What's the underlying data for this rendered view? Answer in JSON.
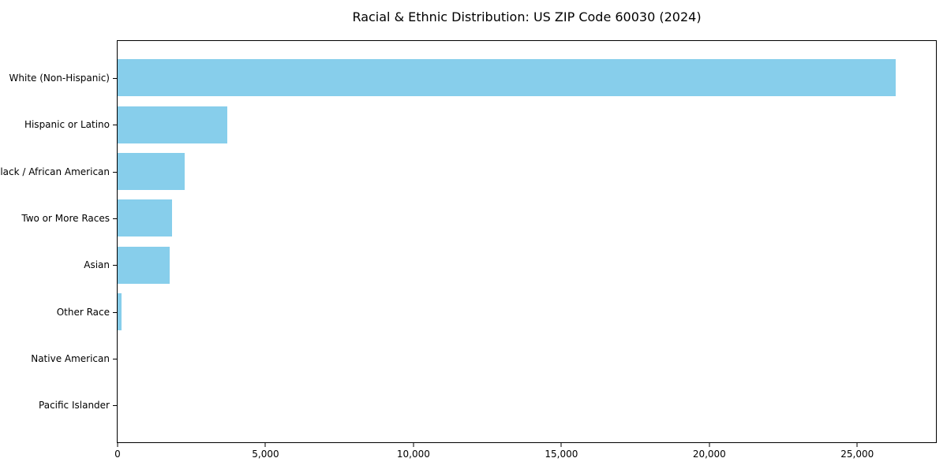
{
  "chart_data": {
    "type": "bar",
    "orientation": "horizontal",
    "title": "Racial & Ethnic Distribution: US ZIP Code 60030 (2024)",
    "categories": [
      "White (Non-Hispanic)",
      "Hispanic or Latino",
      "Black / African American",
      "Two or More Races",
      "Asian",
      "Other Race",
      "Native American",
      "Pacific Islander"
    ],
    "values": [
      26300,
      3720,
      2255,
      1830,
      1750,
      125,
      0,
      0
    ],
    "xlabel": "",
    "ylabel": "",
    "xlim": [
      0,
      27660
    ],
    "xticks": [
      {
        "value": 0,
        "label": "0"
      },
      {
        "value": 5000,
        "label": "5,000"
      },
      {
        "value": 10000,
        "label": "10,000"
      },
      {
        "value": 15000,
        "label": "15,000"
      },
      {
        "value": 20000,
        "label": "20,000"
      },
      {
        "value": 25000,
        "label": "25,000"
      }
    ],
    "bar_color": "#87CEEB",
    "colors": {
      "background": "#ffffff",
      "axis": "#000000",
      "text": "#000000"
    },
    "grid": false,
    "legend": null
  }
}
